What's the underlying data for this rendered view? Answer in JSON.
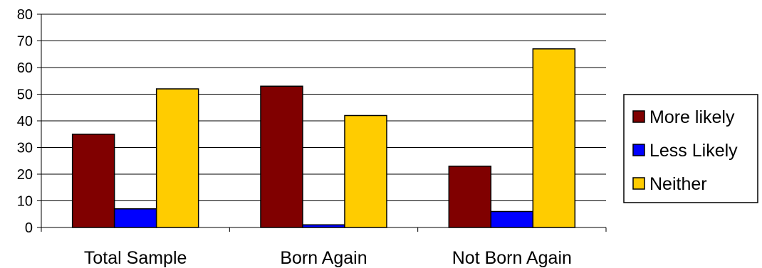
{
  "chart_data": {
    "type": "bar",
    "title": "",
    "xlabel": "",
    "ylabel": "",
    "categories": [
      "Total Sample",
      "Born Again",
      "Not Born Again"
    ],
    "series": [
      {
        "name": "More likely",
        "color": "#800000",
        "values": [
          35,
          53,
          23
        ]
      },
      {
        "name": "Less Likely",
        "color": "#0000ff",
        "values": [
          7,
          1,
          6
        ]
      },
      {
        "name": "Neither",
        "color": "#ffcc00",
        "values": [
          52,
          42,
          67
        ]
      }
    ],
    "ylim": [
      0,
      80
    ],
    "yticks": [
      0,
      10,
      20,
      30,
      40,
      50,
      60,
      70,
      80
    ],
    "grid": true,
    "legend_position": "right"
  }
}
